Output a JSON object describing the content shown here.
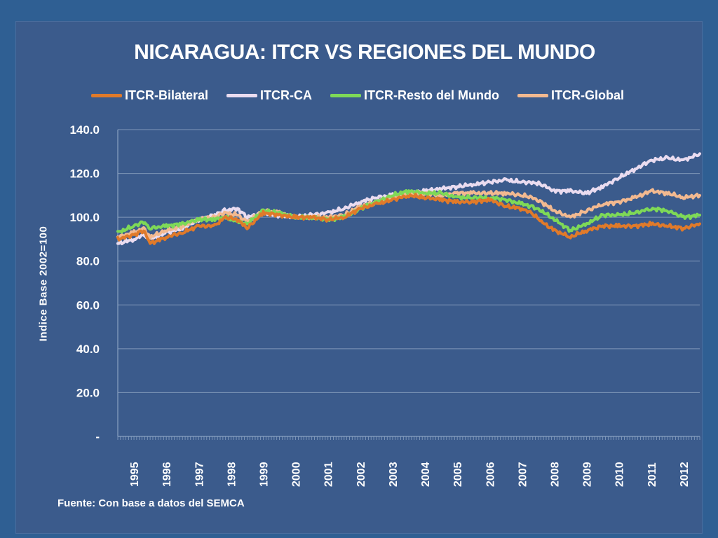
{
  "chart_data": {
    "type": "line",
    "title": "NICARAGUA: ITCR VS REGIONES DEL MUNDO",
    "ylabel": "Indice Base  2002=100",
    "xlabel": "",
    "source": "Fuente: Con base a datos del SEMCA",
    "ylim": [
      0,
      140
    ],
    "y_ticks": [
      0,
      20,
      40,
      60,
      80,
      100,
      120,
      140
    ],
    "y_tick_labels": [
      "-",
      "20.0",
      "40.0",
      "60.0",
      "80.0",
      "100.0",
      "120.0",
      "140.0"
    ],
    "x_range": [
      1994.5,
      2012.5
    ],
    "x_tick_labels": [
      "1995",
      "1996",
      "1997",
      "1998",
      "1999",
      "2000",
      "2001",
      "2002",
      "2003",
      "2004",
      "2005",
      "2006",
      "2007",
      "2008",
      "2009",
      "2010",
      "2011",
      "2012"
    ],
    "grid": true,
    "legend_position": "top",
    "series": [
      {
        "name": "ITCR-Bilateral",
        "color": "#e07a2a",
        "x": [
          1994.5,
          1995.0,
          1995.3,
          1995.5,
          1996.0,
          1996.5,
          1997.0,
          1997.5,
          1997.8,
          1998.2,
          1998.5,
          1999.0,
          1999.5,
          2000.0,
          2000.5,
          2001.0,
          2001.5,
          2002.0,
          2002.5,
          2003.0,
          2003.5,
          2004.0,
          2004.5,
          2005.0,
          2005.5,
          2006.0,
          2006.5,
          2007.0,
          2007.3,
          2007.6,
          2008.0,
          2008.5,
          2009.0,
          2009.5,
          2010.0,
          2010.5,
          2011.0,
          2011.5,
          2012.0,
          2012.5
        ],
        "values": [
          90,
          92,
          94,
          88,
          91,
          93,
          96,
          96,
          100,
          99,
          95,
          102,
          101,
          100,
          100,
          99,
          100,
          104,
          106,
          108,
          110,
          109,
          108,
          107,
          107,
          108,
          105,
          104,
          102,
          98,
          94,
          91,
          94,
          96,
          96,
          96,
          97,
          96,
          95,
          97
        ]
      },
      {
        "name": "ITCR-CA",
        "color": "#eadcf0",
        "x": [
          1994.5,
          1995.0,
          1995.3,
          1995.5,
          1996.0,
          1996.5,
          1997.0,
          1997.5,
          1997.8,
          1998.2,
          1998.5,
          1999.0,
          1999.5,
          2000.0,
          2000.5,
          2001.0,
          2001.5,
          2002.0,
          2002.5,
          2003.0,
          2003.5,
          2004.0,
          2004.5,
          2005.0,
          2005.5,
          2006.0,
          2006.5,
          2007.0,
          2007.3,
          2007.6,
          2008.0,
          2008.5,
          2009.0,
          2009.5,
          2010.0,
          2010.5,
          2011.0,
          2011.5,
          2012.0,
          2012.5
        ],
        "values": [
          88,
          90,
          92,
          90,
          93,
          95,
          99,
          101,
          103,
          104,
          100,
          102,
          101,
          100,
          101,
          102,
          104,
          107,
          109,
          110,
          111,
          112,
          113,
          114,
          115,
          116,
          117,
          116,
          116,
          115,
          112,
          112,
          111,
          114,
          118,
          122,
          126,
          127,
          126,
          129
        ]
      },
      {
        "name": "ITCR-Resto del Mundo",
        "color": "#7ed957",
        "x": [
          1994.5,
          1995.0,
          1995.3,
          1995.5,
          1996.0,
          1996.5,
          1997.0,
          1997.5,
          1997.8,
          1998.2,
          1998.5,
          1999.0,
          1999.5,
          2000.0,
          2000.5,
          2001.0,
          2001.5,
          2002.0,
          2002.5,
          2003.0,
          2003.5,
          2004.0,
          2004.5,
          2005.0,
          2005.5,
          2006.0,
          2006.5,
          2007.0,
          2007.3,
          2007.6,
          2008.0,
          2008.5,
          2009.0,
          2009.5,
          2010.0,
          2010.5,
          2011.0,
          2011.5,
          2012.0,
          2012.5
        ],
        "values": [
          93,
          96,
          98,
          95,
          96,
          97,
          99,
          99,
          100,
          98,
          97,
          103,
          102,
          100,
          100,
          99,
          100,
          104,
          107,
          110,
          112,
          111,
          111,
          109,
          109,
          109,
          108,
          106,
          105,
          103,
          99,
          94,
          97,
          101,
          101,
          102,
          104,
          103,
          100,
          101
        ]
      },
      {
        "name": "ITCR-Global",
        "color": "#f2b990",
        "x": [
          1994.5,
          1995.0,
          1995.3,
          1995.5,
          1996.0,
          1996.5,
          1997.0,
          1997.5,
          1997.8,
          1998.2,
          1998.5,
          1999.0,
          1999.5,
          2000.0,
          2000.5,
          2001.0,
          2001.5,
          2002.0,
          2002.5,
          2003.0,
          2003.5,
          2004.0,
          2004.5,
          2005.0,
          2005.5,
          2006.0,
          2006.5,
          2007.0,
          2007.3,
          2007.6,
          2008.0,
          2008.5,
          2009.0,
          2009.5,
          2010.0,
          2010.5,
          2011.0,
          2011.5,
          2012.0,
          2012.5
        ],
        "values": [
          91,
          93,
          95,
          91,
          94,
          96,
          99,
          100,
          102,
          101,
          98,
          103,
          102,
          100,
          100,
          100,
          101,
          105,
          107,
          109,
          111,
          111,
          110,
          111,
          111,
          111,
          111,
          110,
          109,
          107,
          103,
          100,
          103,
          106,
          107,
          109,
          112,
          111,
          109,
          110
        ]
      }
    ]
  }
}
